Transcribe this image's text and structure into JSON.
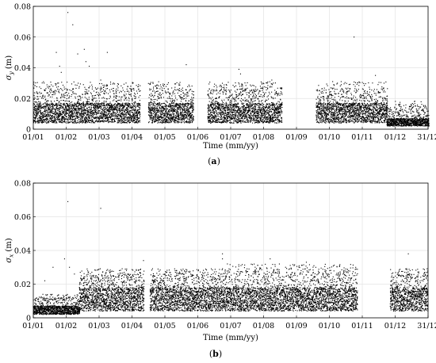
{
  "chart_data": [
    {
      "id": "a",
      "type": "scatter",
      "panel_label": "a",
      "xlabel": "Time (mm/yy)",
      "ylabel": "σ_y (m)",
      "ylabel_symbol": "σ",
      "ylabel_sub": "y",
      "ylabel_unit": "(m)",
      "x_tick_labels": [
        "01/01",
        "01/02",
        "01/03",
        "01/04",
        "01/05",
        "01/06",
        "01/07",
        "01/08",
        "01/09",
        "01/10",
        "01/11",
        "01/12",
        "31/12"
      ],
      "y_tick_labels": [
        "0",
        "0.02",
        "0.04",
        "0.06",
        "0.08"
      ],
      "xlim": [
        0,
        12
      ],
      "ylim": [
        0,
        0.08
      ],
      "grid": true,
      "marker_color": "#000000",
      "segments": [
        {
          "from": 0.0,
          "to": 3.25,
          "band_low": 0.004,
          "band_high": 0.017,
          "daily_peak": 0.027
        },
        {
          "from": 3.5,
          "to": 4.85,
          "band_low": 0.004,
          "band_high": 0.017,
          "daily_peak": 0.027
        },
        {
          "from": 5.3,
          "to": 7.55,
          "band_low": 0.004,
          "band_high": 0.017,
          "daily_peak": 0.027
        },
        {
          "from": 8.6,
          "to": 10.75,
          "band_low": 0.004,
          "band_high": 0.017,
          "daily_peak": 0.027
        },
        {
          "from": 10.75,
          "to": 12.0,
          "band_low": 0.002,
          "band_high": 0.007,
          "daily_peak": 0.015
        }
      ],
      "outliers": [
        {
          "x": 0.7,
          "y": 0.05
        },
        {
          "x": 0.8,
          "y": 0.041
        },
        {
          "x": 0.85,
          "y": 0.037
        },
        {
          "x": 1.05,
          "y": 0.076
        },
        {
          "x": 1.2,
          "y": 0.068
        },
        {
          "x": 1.35,
          "y": 0.049
        },
        {
          "x": 1.55,
          "y": 0.052
        },
        {
          "x": 1.6,
          "y": 0.044
        },
        {
          "x": 1.7,
          "y": 0.041
        },
        {
          "x": 2.25,
          "y": 0.05
        },
        {
          "x": 2.05,
          "y": 0.032
        },
        {
          "x": 4.65,
          "y": 0.042
        },
        {
          "x": 6.25,
          "y": 0.039
        },
        {
          "x": 6.3,
          "y": 0.036
        },
        {
          "x": 9.75,
          "y": 0.06
        },
        {
          "x": 9.1,
          "y": 0.031
        },
        {
          "x": 10.4,
          "y": 0.035
        },
        {
          "x": 7.25,
          "y": 0.032
        }
      ]
    },
    {
      "id": "b",
      "type": "scatter",
      "panel_label": "b",
      "xlabel": "Time (mm/yy)",
      "ylabel": "σ_x (m)",
      "ylabel_symbol": "σ",
      "ylabel_sub": "x",
      "ylabel_unit": "(m)",
      "x_tick_labels": [
        "01/01",
        "01/02",
        "01/03",
        "01/04",
        "01/05",
        "01/06",
        "01/07",
        "01/08",
        "01/09",
        "01/10",
        "01/11",
        "01/12",
        "31/12"
      ],
      "y_tick_labels": [
        "0",
        "0.02",
        "0.04",
        "0.06",
        "0.08"
      ],
      "xlim": [
        0,
        12
      ],
      "ylim": [
        0,
        0.08
      ],
      "grid": true,
      "marker_color": "#000000",
      "segments": [
        {
          "from": 0.0,
          "to": 1.4,
          "band_low": 0.002,
          "band_high": 0.007,
          "daily_peak": 0.012
        },
        {
          "from": 1.4,
          "to": 3.35,
          "band_low": 0.004,
          "band_high": 0.018,
          "daily_peak": 0.026
        },
        {
          "from": 3.55,
          "to": 5.75,
          "band_low": 0.004,
          "band_high": 0.018,
          "daily_peak": 0.026
        },
        {
          "from": 5.75,
          "to": 9.85,
          "band_low": 0.004,
          "band_high": 0.018,
          "daily_peak": 0.028
        },
        {
          "from": 10.85,
          "to": 12.0,
          "band_low": 0.004,
          "band_high": 0.018,
          "daily_peak": 0.026
        }
      ],
      "outliers": [
        {
          "x": 1.05,
          "y": 0.069
        },
        {
          "x": 2.05,
          "y": 0.065
        },
        {
          "x": 0.95,
          "y": 0.035
        },
        {
          "x": 0.6,
          "y": 0.03
        },
        {
          "x": 1.1,
          "y": 0.03
        },
        {
          "x": 1.25,
          "y": 0.026
        },
        {
          "x": 0.35,
          "y": 0.022
        },
        {
          "x": 5.75,
          "y": 0.038
        },
        {
          "x": 5.75,
          "y": 0.035
        },
        {
          "x": 5.9,
          "y": 0.032
        },
        {
          "x": 3.35,
          "y": 0.034
        },
        {
          "x": 11.4,
          "y": 0.038
        },
        {
          "x": 2.6,
          "y": 0.024
        },
        {
          "x": 7.2,
          "y": 0.035
        },
        {
          "x": 8.3,
          "y": 0.033
        }
      ]
    }
  ]
}
